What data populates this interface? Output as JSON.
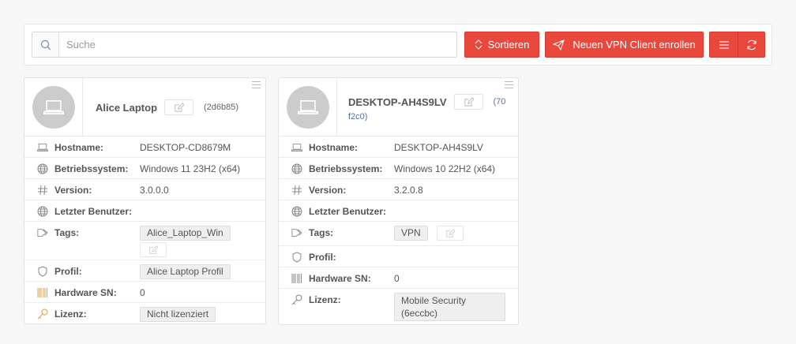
{
  "toolbar": {
    "search_placeholder": "Suche",
    "sort_label": "Sortieren",
    "enroll_label": "Neuen VPN Client enrollen",
    "accent": "#e9483d"
  },
  "cards": [
    {
      "name": "Alice Laptop",
      "id": "(2d6b85)",
      "hostname": "DESKTOP-CD8679M",
      "os": "Windows 11 23H2 (x64)",
      "version": "3.0.0.0",
      "last_user": "",
      "tags": [
        "Alice_Laptop_Win"
      ],
      "profile": "Alice Laptop Profil",
      "hw_sn": "0",
      "license": "Nicht lizenziert"
    },
    {
      "name": "DESKTOP-AH4S9LV",
      "id_a": "(70",
      "id_b": "f2c0)",
      "hostname": "DESKTOP-AH4S9LV",
      "os": "Windows 10 22H2 (x64)",
      "version": "3.2.0.8",
      "last_user": "",
      "tags": [
        "VPN"
      ],
      "profile": "",
      "hw_sn": "0",
      "license_a": "Mobile Security",
      "license_b": "(6eccbc)"
    }
  ],
  "labels": {
    "hostname": "Hostname:",
    "os": "Betriebssystem:",
    "version": "Version:",
    "last_user": "Letzter Benutzer:",
    "tags": "Tags:",
    "profile": "Profil:",
    "hw_sn": "Hardware SN:",
    "license": "Lizenz:"
  }
}
